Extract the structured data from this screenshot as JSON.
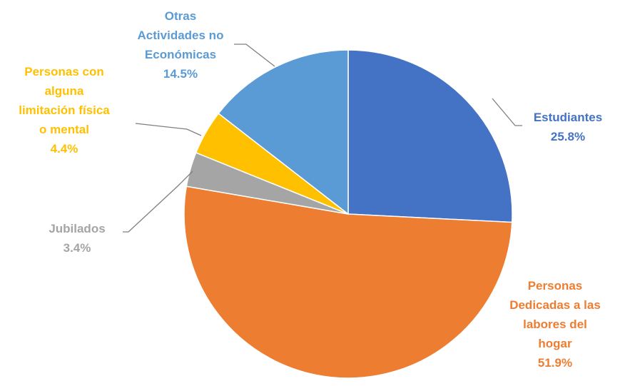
{
  "chart_data": {
    "type": "pie",
    "title": "",
    "start_angle_deg": 0,
    "direction": "clockwise",
    "slices": [
      {
        "label_lines": [
          "Estudiantes"
        ],
        "value": 25.8,
        "value_label": "25.8%",
        "color": "#4472c4"
      },
      {
        "label_lines": [
          "Personas",
          "Dedicadas a las",
          "labores del",
          "hogar"
        ],
        "value": 51.9,
        "value_label": "51.9%",
        "color": "#ed7d31"
      },
      {
        "label_lines": [
          "Jubilados"
        ],
        "value": 3.4,
        "value_label": "3.4%",
        "color": "#a5a5a5"
      },
      {
        "label_lines": [
          "Personas con",
          "alguna",
          "limitación física",
          "o mental"
        ],
        "value": 4.4,
        "value_label": "4.4%",
        "color": "#ffc000"
      },
      {
        "label_lines": [
          "Otras",
          "Actividades no",
          "Económicas"
        ],
        "value": 14.5,
        "value_label": "14.5%",
        "color": "#5b9bd5"
      }
    ]
  }
}
